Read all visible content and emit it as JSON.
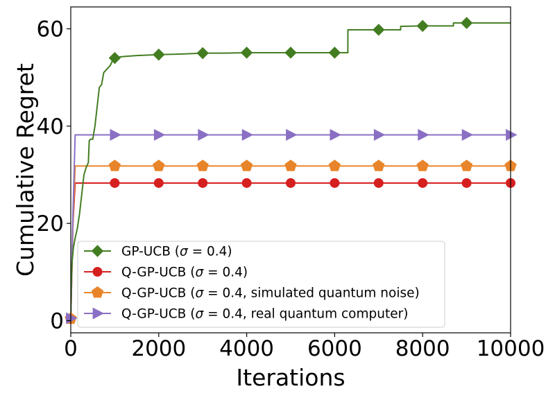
{
  "chart_data": {
    "type": "line",
    "title": "",
    "xlabel": "Iterations",
    "ylabel": "Cumulative Regret",
    "xlim": [
      0,
      10000
    ],
    "ylim": [
      -2.5,
      64.5
    ],
    "xticks": [
      0,
      2000,
      4000,
      6000,
      8000,
      10000
    ],
    "xtick_labels": [
      "0",
      "2000",
      "4000",
      "6000",
      "8000",
      "10000"
    ],
    "yticks": [
      0,
      20,
      40,
      60
    ],
    "ytick_labels": [
      "0",
      "20",
      "40",
      "60"
    ],
    "grid": false,
    "legend_position": "lower-right",
    "series": [
      {
        "name": "GP-UCB (σ = 0.4)",
        "legend_parts": [
          "GP-UCB (",
          "σ",
          " = 0.4)"
        ],
        "color": "#437d22",
        "marker": "diamond",
        "x": [
          0,
          10,
          30,
          60,
          100,
          150,
          200,
          250,
          300,
          350,
          400,
          420,
          450,
          500,
          550,
          600,
          650,
          700,
          750,
          800,
          850,
          900,
          950,
          1000,
          1100,
          1200,
          1500,
          2000,
          2500,
          3000,
          3500,
          4000,
          5000,
          6000,
          6300,
          6301,
          7000,
          7500,
          7501,
          8000,
          8700,
          8701,
          9000,
          10000
        ],
        "values": [
          0,
          7,
          12,
          15,
          17,
          19,
          22,
          26,
          30,
          31.5,
          32.5,
          37,
          37.3,
          37.3,
          40,
          44,
          48,
          48.5,
          51,
          51.5,
          52,
          52.5,
          53.5,
          54,
          54.2,
          54.3,
          54.5,
          54.7,
          54.8,
          55,
          55,
          55.1,
          55.1,
          55.1,
          55.1,
          59.8,
          59.8,
          59.8,
          60.5,
          60.6,
          60.6,
          61.2,
          61.2,
          61.2
        ],
        "marker_x": [
          1000,
          2000,
          3000,
          4000,
          5000,
          6000,
          7000,
          8000,
          9000
        ],
        "marker_values": [
          54,
          54.7,
          55,
          55.1,
          55.1,
          55.1,
          59.8,
          60.6,
          61.2
        ]
      },
      {
        "name": "Q-GP-UCB (σ = 0.4)",
        "legend_parts": [
          "Q-GP-UCB (",
          "σ",
          " = 0.4)"
        ],
        "color": "#d62020",
        "marker": "circle",
        "x": [
          0,
          50,
          100,
          10000
        ],
        "values": [
          0,
          20,
          28.3,
          28.3
        ],
        "marker_x": [
          0,
          1000,
          2000,
          3000,
          4000,
          5000,
          6000,
          7000,
          8000,
          9000,
          10000
        ],
        "marker_values": [
          0.3,
          28.3,
          28.3,
          28.3,
          28.3,
          28.3,
          28.3,
          28.3,
          28.3,
          28.3,
          28.3
        ]
      },
      {
        "name": "Q-GP-UCB (σ = 0.4, simulated quantum noise)",
        "legend_parts": [
          "Q-GP-UCB (",
          "σ",
          " = 0.4, simulated quantum noise)"
        ],
        "color": "#e8852a",
        "marker": "pentagon",
        "x": [
          0,
          50,
          100,
          10000
        ],
        "values": [
          0,
          20,
          31.8,
          31.8
        ],
        "marker_x": [
          0,
          1000,
          2000,
          3000,
          4000,
          5000,
          6000,
          7000,
          8000,
          9000,
          10000
        ],
        "marker_values": [
          0.4,
          31.8,
          31.8,
          31.8,
          31.8,
          31.8,
          31.8,
          31.8,
          31.8,
          31.8,
          31.8
        ]
      },
      {
        "name": "Q-GP-UCB (σ = 0.4, real quantum computer)",
        "legend_parts": [
          "Q-GP-UCB (",
          "σ",
          " = 0.4, real quantum computer)"
        ],
        "color": "#8a6fc4",
        "marker": "triangle-right",
        "x": [
          0,
          50,
          100,
          10000
        ],
        "values": [
          0,
          22,
          38.2,
          38.2
        ],
        "marker_x": [
          0,
          1000,
          2000,
          3000,
          4000,
          5000,
          6000,
          7000,
          8000,
          9000,
          10000
        ],
        "marker_values": [
          0.5,
          38.2,
          38.2,
          38.2,
          38.2,
          38.2,
          38.2,
          38.2,
          38.2,
          38.2,
          38.2
        ]
      }
    ]
  }
}
